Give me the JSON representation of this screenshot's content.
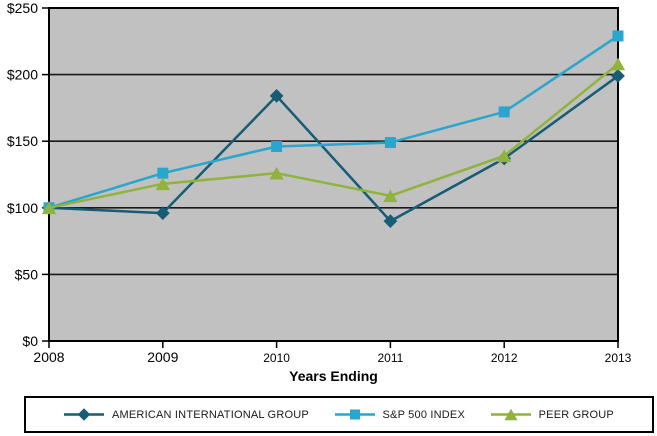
{
  "chart_data": {
    "type": "line",
    "title": "",
    "xlabel": "Years Ending",
    "ylabel": "",
    "categories": [
      "2008",
      "2009",
      "2010",
      "2011",
      "2012",
      "2013"
    ],
    "y_tick_labels": [
      "$0",
      "$50",
      "$100",
      "$150",
      "$200",
      "$250"
    ],
    "ylim": [
      0,
      250
    ],
    "y_tick_step": 50,
    "grid": true,
    "legend_position": "bottom",
    "plot_bg_color": "#C1C1C1",
    "gridline_color": "#1a1a1a",
    "axis_color": "#000000",
    "series": [
      {
        "name": "AMERICAN INTERNATIONAL GROUP",
        "marker": "diamond",
        "color": "#155C74",
        "values": [
          100,
          96,
          184,
          90,
          137,
          199
        ]
      },
      {
        "name": "S&P 500 INDEX",
        "marker": "square",
        "color": "#29A5CE",
        "values": [
          100,
          126,
          146,
          149,
          172,
          229
        ]
      },
      {
        "name": "PEER GROUP",
        "marker": "triangle",
        "color": "#8FB33C",
        "values": [
          100,
          118,
          126,
          109,
          139,
          208
        ]
      }
    ]
  }
}
